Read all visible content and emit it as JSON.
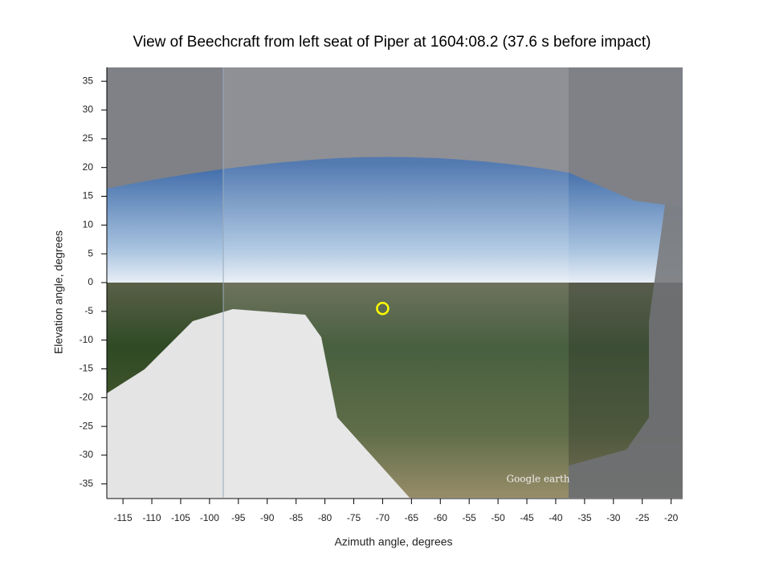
{
  "chart_data": {
    "type": "scatter",
    "title": "View of Beechcraft from left seat of Piper at 1604:08.2 (37.6 s before impact)",
    "x_label": "Azimuth angle, degrees",
    "y_label": "Elevation angle, degrees",
    "series": [
      {
        "x": [
          -70
        ],
        "values": [
          -4.5
        ],
        "color": "#ffff00"
      }
    ],
    "xlim": [
      -117.8,
      -18
    ],
    "ylim": [
      -37.4,
      37.4
    ],
    "xticks": [
      -115,
      -110,
      -105,
      -100,
      -95,
      -90,
      -85,
      -80,
      -75,
      -70,
      -65,
      -60,
      -55,
      -50,
      -45,
      -40,
      -35,
      -30,
      -25,
      -20
    ],
    "yticks": [
      -35,
      -30,
      -25,
      -20,
      -15,
      -10,
      -5,
      0,
      5,
      10,
      15,
      20,
      25,
      30,
      35
    ],
    "annotations": [
      "Google earth"
    ]
  }
}
